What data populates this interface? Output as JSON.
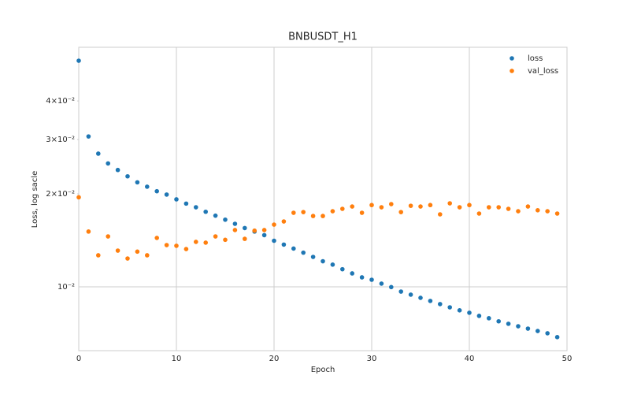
{
  "chart_data": {
    "type": "scatter",
    "title": "BNBUSDT_H1",
    "x_label": "Epoch",
    "y_label": "Loss, log sacle",
    "x": [
      0,
      1,
      2,
      3,
      4,
      5,
      6,
      7,
      8,
      9,
      10,
      11,
      12,
      13,
      14,
      15,
      16,
      17,
      18,
      19,
      20,
      21,
      22,
      23,
      24,
      25,
      26,
      27,
      28,
      29,
      30,
      31,
      32,
      33,
      34,
      35,
      36,
      37,
      38,
      39,
      40,
      41,
      42,
      43,
      44,
      45,
      46,
      47,
      48,
      49
    ],
    "series": [
      {
        "name": "loss",
        "color": "#1f77b4",
        "values": [
          0.054,
          0.0307,
          0.027,
          0.0251,
          0.0239,
          0.0228,
          0.0218,
          0.0211,
          0.0204,
          0.0199,
          0.0192,
          0.0186,
          0.0181,
          0.0175,
          0.017,
          0.0165,
          0.016,
          0.0155,
          0.0151,
          0.0147,
          0.0141,
          0.0137,
          0.0133,
          0.0129,
          0.0125,
          0.0121,
          0.0118,
          0.0114,
          0.01105,
          0.01073,
          0.01054,
          0.01024,
          0.00998,
          0.00965,
          0.00943,
          0.00921,
          0.009,
          0.00879,
          0.00858,
          0.00839,
          0.00824,
          0.00805,
          0.00791,
          0.00773,
          0.00759,
          0.00745,
          0.00732,
          0.00719,
          0.00707,
          0.00687
        ]
      },
      {
        "name": "val_loss",
        "color": "#ff7f0e",
        "values": [
          0.0195,
          0.0151,
          0.01265,
          0.01456,
          0.0131,
          0.01235,
          0.013,
          0.01265,
          0.0144,
          0.01365,
          0.01358,
          0.01325,
          0.01398,
          0.0139,
          0.01456,
          0.0142,
          0.01527,
          0.0143,
          0.0152,
          0.01527,
          0.0159,
          0.01628,
          0.01737,
          0.01746,
          0.01696,
          0.01696,
          0.01757,
          0.01789,
          0.0182,
          0.01737,
          0.0184,
          0.0181,
          0.01853,
          0.01746,
          0.0183,
          0.0182,
          0.0184,
          0.01717,
          0.01864,
          0.0181,
          0.0184,
          0.01727,
          0.0181,
          0.0181,
          0.01789,
          0.01757,
          0.0182,
          0.0177,
          0.01757,
          0.01727
        ]
      }
    ],
    "xlim": [
      0,
      50
    ],
    "xticks": [
      0,
      10,
      20,
      30,
      40,
      50
    ],
    "ylim": [
      0.00621,
      0.0597
    ],
    "y_log_scale": true,
    "yticks": [
      {
        "value": 0.01,
        "label": "10⁻²"
      },
      {
        "value": 0.02,
        "label": "2×10⁻²"
      },
      {
        "value": 0.03,
        "label": "3×10⁻²"
      },
      {
        "value": 0.04,
        "label": "4×10⁻²"
      }
    ],
    "grid": true,
    "legend": "upper right"
  }
}
